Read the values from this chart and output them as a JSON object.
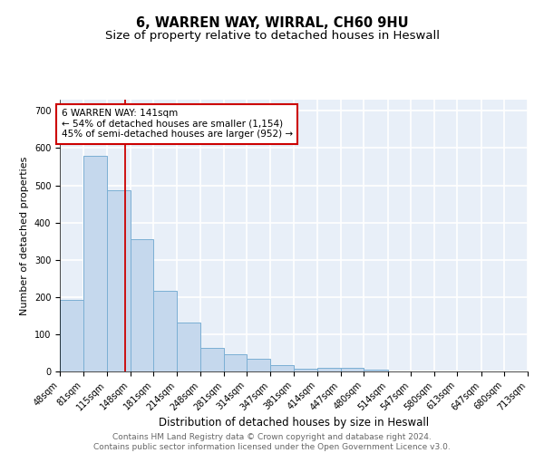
{
  "title": "6, WARREN WAY, WIRRAL, CH60 9HU",
  "subtitle": "Size of property relative to detached houses in Heswall",
  "xlabel": "Distribution of detached houses by size in Heswall",
  "ylabel": "Number of detached properties",
  "bar_edges": [
    48,
    81,
    115,
    148,
    181,
    214,
    248,
    281,
    314,
    347,
    381,
    414,
    447,
    480,
    514,
    547,
    580,
    613,
    647,
    680,
    713
  ],
  "bar_heights": [
    192,
    578,
    487,
    355,
    216,
    131,
    63,
    46,
    34,
    16,
    8,
    10,
    10,
    6,
    0,
    0,
    0,
    0,
    0,
    0
  ],
  "bar_color": "#c5d8ed",
  "bar_edge_color": "#7bafd4",
  "bar_edge_width": 0.7,
  "vline_x": 141,
  "vline_color": "#cc0000",
  "annotation_text": "6 WARREN WAY: 141sqm\n← 54% of detached houses are smaller (1,154)\n45% of semi-detached houses are larger (952) →",
  "annotation_box_color": "white",
  "annotation_box_edge_color": "#cc0000",
  "ytick_values": [
    0,
    100,
    200,
    300,
    400,
    500,
    600,
    700
  ],
  "ylim": [
    0,
    730
  ],
  "xtick_labels": [
    "48sqm",
    "81sqm",
    "115sqm",
    "148sqm",
    "181sqm",
    "214sqm",
    "248sqm",
    "281sqm",
    "314sqm",
    "347sqm",
    "381sqm",
    "414sqm",
    "447sqm",
    "480sqm",
    "514sqm",
    "547sqm",
    "580sqm",
    "613sqm",
    "647sqm",
    "680sqm",
    "713sqm"
  ],
  "background_color": "#e8eff8",
  "grid_color": "white",
  "footer_text": "Contains HM Land Registry data © Crown copyright and database right 2024.\nContains public sector information licensed under the Open Government Licence v3.0.",
  "title_fontsize": 10.5,
  "subtitle_fontsize": 9.5,
  "xlabel_fontsize": 8.5,
  "ylabel_fontsize": 8,
  "tick_fontsize": 7,
  "annotation_fontsize": 7.5,
  "footer_fontsize": 6.5
}
